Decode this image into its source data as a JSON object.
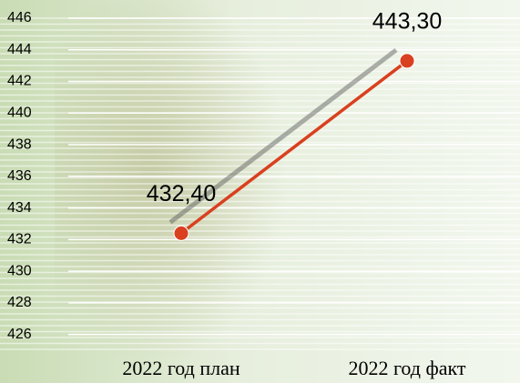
{
  "chart_data": {
    "type": "line",
    "categories": [
      "2022 год план",
      "2022 год факт"
    ],
    "series": [
      {
        "color": "#d9401f",
        "values": [
          432.4,
          443.3
        ],
        "value_labels": [
          "432,40",
          "443,30"
        ]
      }
    ],
    "ylim": [
      425,
      446
    ],
    "yticks": [
      426,
      428,
      430,
      432,
      434,
      436,
      438,
      440,
      442,
      444,
      446
    ],
    "grid": true
  }
}
